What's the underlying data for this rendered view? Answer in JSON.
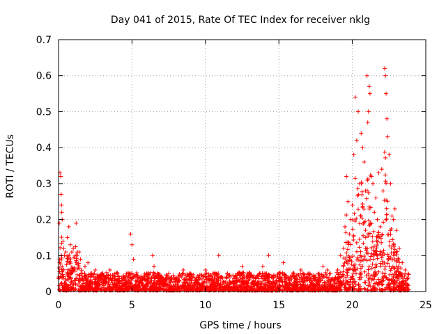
{
  "chart_data": {
    "type": "scatter",
    "title": "Day 041 of 2015, Rate Of TEC Index for receiver nklg",
    "xlabel": "GPS time / hours",
    "ylabel": "ROTI / TECUs",
    "xlim": [
      0,
      25
    ],
    "ylim": [
      0,
      0.7
    ],
    "x_ticks": [
      0,
      5,
      10,
      15,
      20,
      25
    ],
    "y_ticks": [
      0,
      0.1,
      0.2,
      0.3,
      0.4,
      0.5,
      0.6,
      0.7
    ],
    "x_tick_labels": [
      "0",
      "5",
      "10",
      "15",
      "20",
      "25"
    ],
    "y_tick_labels": [
      "0",
      "0.1",
      "0.2",
      "0.3",
      "0.4",
      "0.5",
      "0.6",
      "0.7"
    ],
    "grid": true,
    "marker": "+",
    "series": [
      {
        "name": "ROTI",
        "color": "#ff0000",
        "x": [
          0.05,
          0.1,
          0.15,
          0.18,
          0.2,
          0.22,
          0.25,
          0.3,
          0.35,
          0.4,
          0.5,
          0.6,
          0.7,
          0.8,
          0.9,
          1.0,
          1.2,
          1.4,
          1.5,
          1.8,
          2.0,
          2.5,
          3.0,
          3.5,
          4.0,
          4.5,
          4.9,
          5.0,
          5.1,
          5.5,
          6.0,
          6.4,
          6.5,
          7.0,
          7.5,
          8.0,
          8.5,
          9.0,
          9.5,
          10.0,
          10.5,
          10.9,
          11.0,
          11.5,
          12.0,
          12.5,
          13.0,
          13.5,
          13.9,
          14.0,
          14.3,
          14.5,
          15.0,
          15.3,
          15.5,
          16.0,
          16.5,
          17.0,
          17.5,
          18.0,
          18.3,
          18.5,
          19.0,
          19.2,
          19.4,
          19.5,
          19.6,
          19.7,
          19.8,
          19.9,
          20.0,
          20.1,
          20.2,
          20.3,
          20.4,
          20.5,
          20.6,
          20.7,
          20.8,
          20.9,
          21.0,
          21.05,
          21.1,
          21.15,
          21.2,
          21.3,
          21.4,
          21.5,
          21.6,
          21.7,
          21.8,
          21.9,
          22.0,
          22.1,
          22.2,
          22.25,
          22.3,
          22.35,
          22.4,
          22.5,
          22.6,
          22.7,
          22.8,
          22.9,
          23.0,
          23.2,
          23.4,
          23.6,
          23.8
        ],
        "y": [
          0.19,
          0.33,
          0.32,
          0.27,
          0.24,
          0.22,
          0.2,
          0.14,
          0.12,
          0.1,
          0.11,
          0.15,
          0.18,
          0.13,
          0.11,
          0.12,
          0.19,
          0.11,
          0.09,
          0.07,
          0.08,
          0.06,
          0.05,
          0.06,
          0.05,
          0.04,
          0.16,
          0.13,
          0.09,
          0.04,
          0.05,
          0.1,
          0.07,
          0.04,
          0.05,
          0.04,
          0.06,
          0.05,
          0.04,
          0.06,
          0.05,
          0.1,
          0.04,
          0.05,
          0.04,
          0.07,
          0.05,
          0.04,
          0.07,
          0.05,
          0.1,
          0.04,
          0.05,
          0.08,
          0.04,
          0.05,
          0.06,
          0.05,
          0.04,
          0.07,
          0.06,
          0.05,
          0.06,
          0.1,
          0.12,
          0.18,
          0.32,
          0.25,
          0.16,
          0.2,
          0.24,
          0.38,
          0.54,
          0.42,
          0.5,
          0.3,
          0.44,
          0.4,
          0.36,
          0.28,
          0.6,
          0.47,
          0.5,
          0.57,
          0.55,
          0.32,
          0.3,
          0.22,
          0.26,
          0.2,
          0.33,
          0.18,
          0.34,
          0.28,
          0.62,
          0.6,
          0.55,
          0.48,
          0.43,
          0.38,
          0.3,
          0.21,
          0.2,
          0.23,
          0.17,
          0.12,
          0.08,
          0.06,
          0.05
        ]
      }
    ]
  }
}
